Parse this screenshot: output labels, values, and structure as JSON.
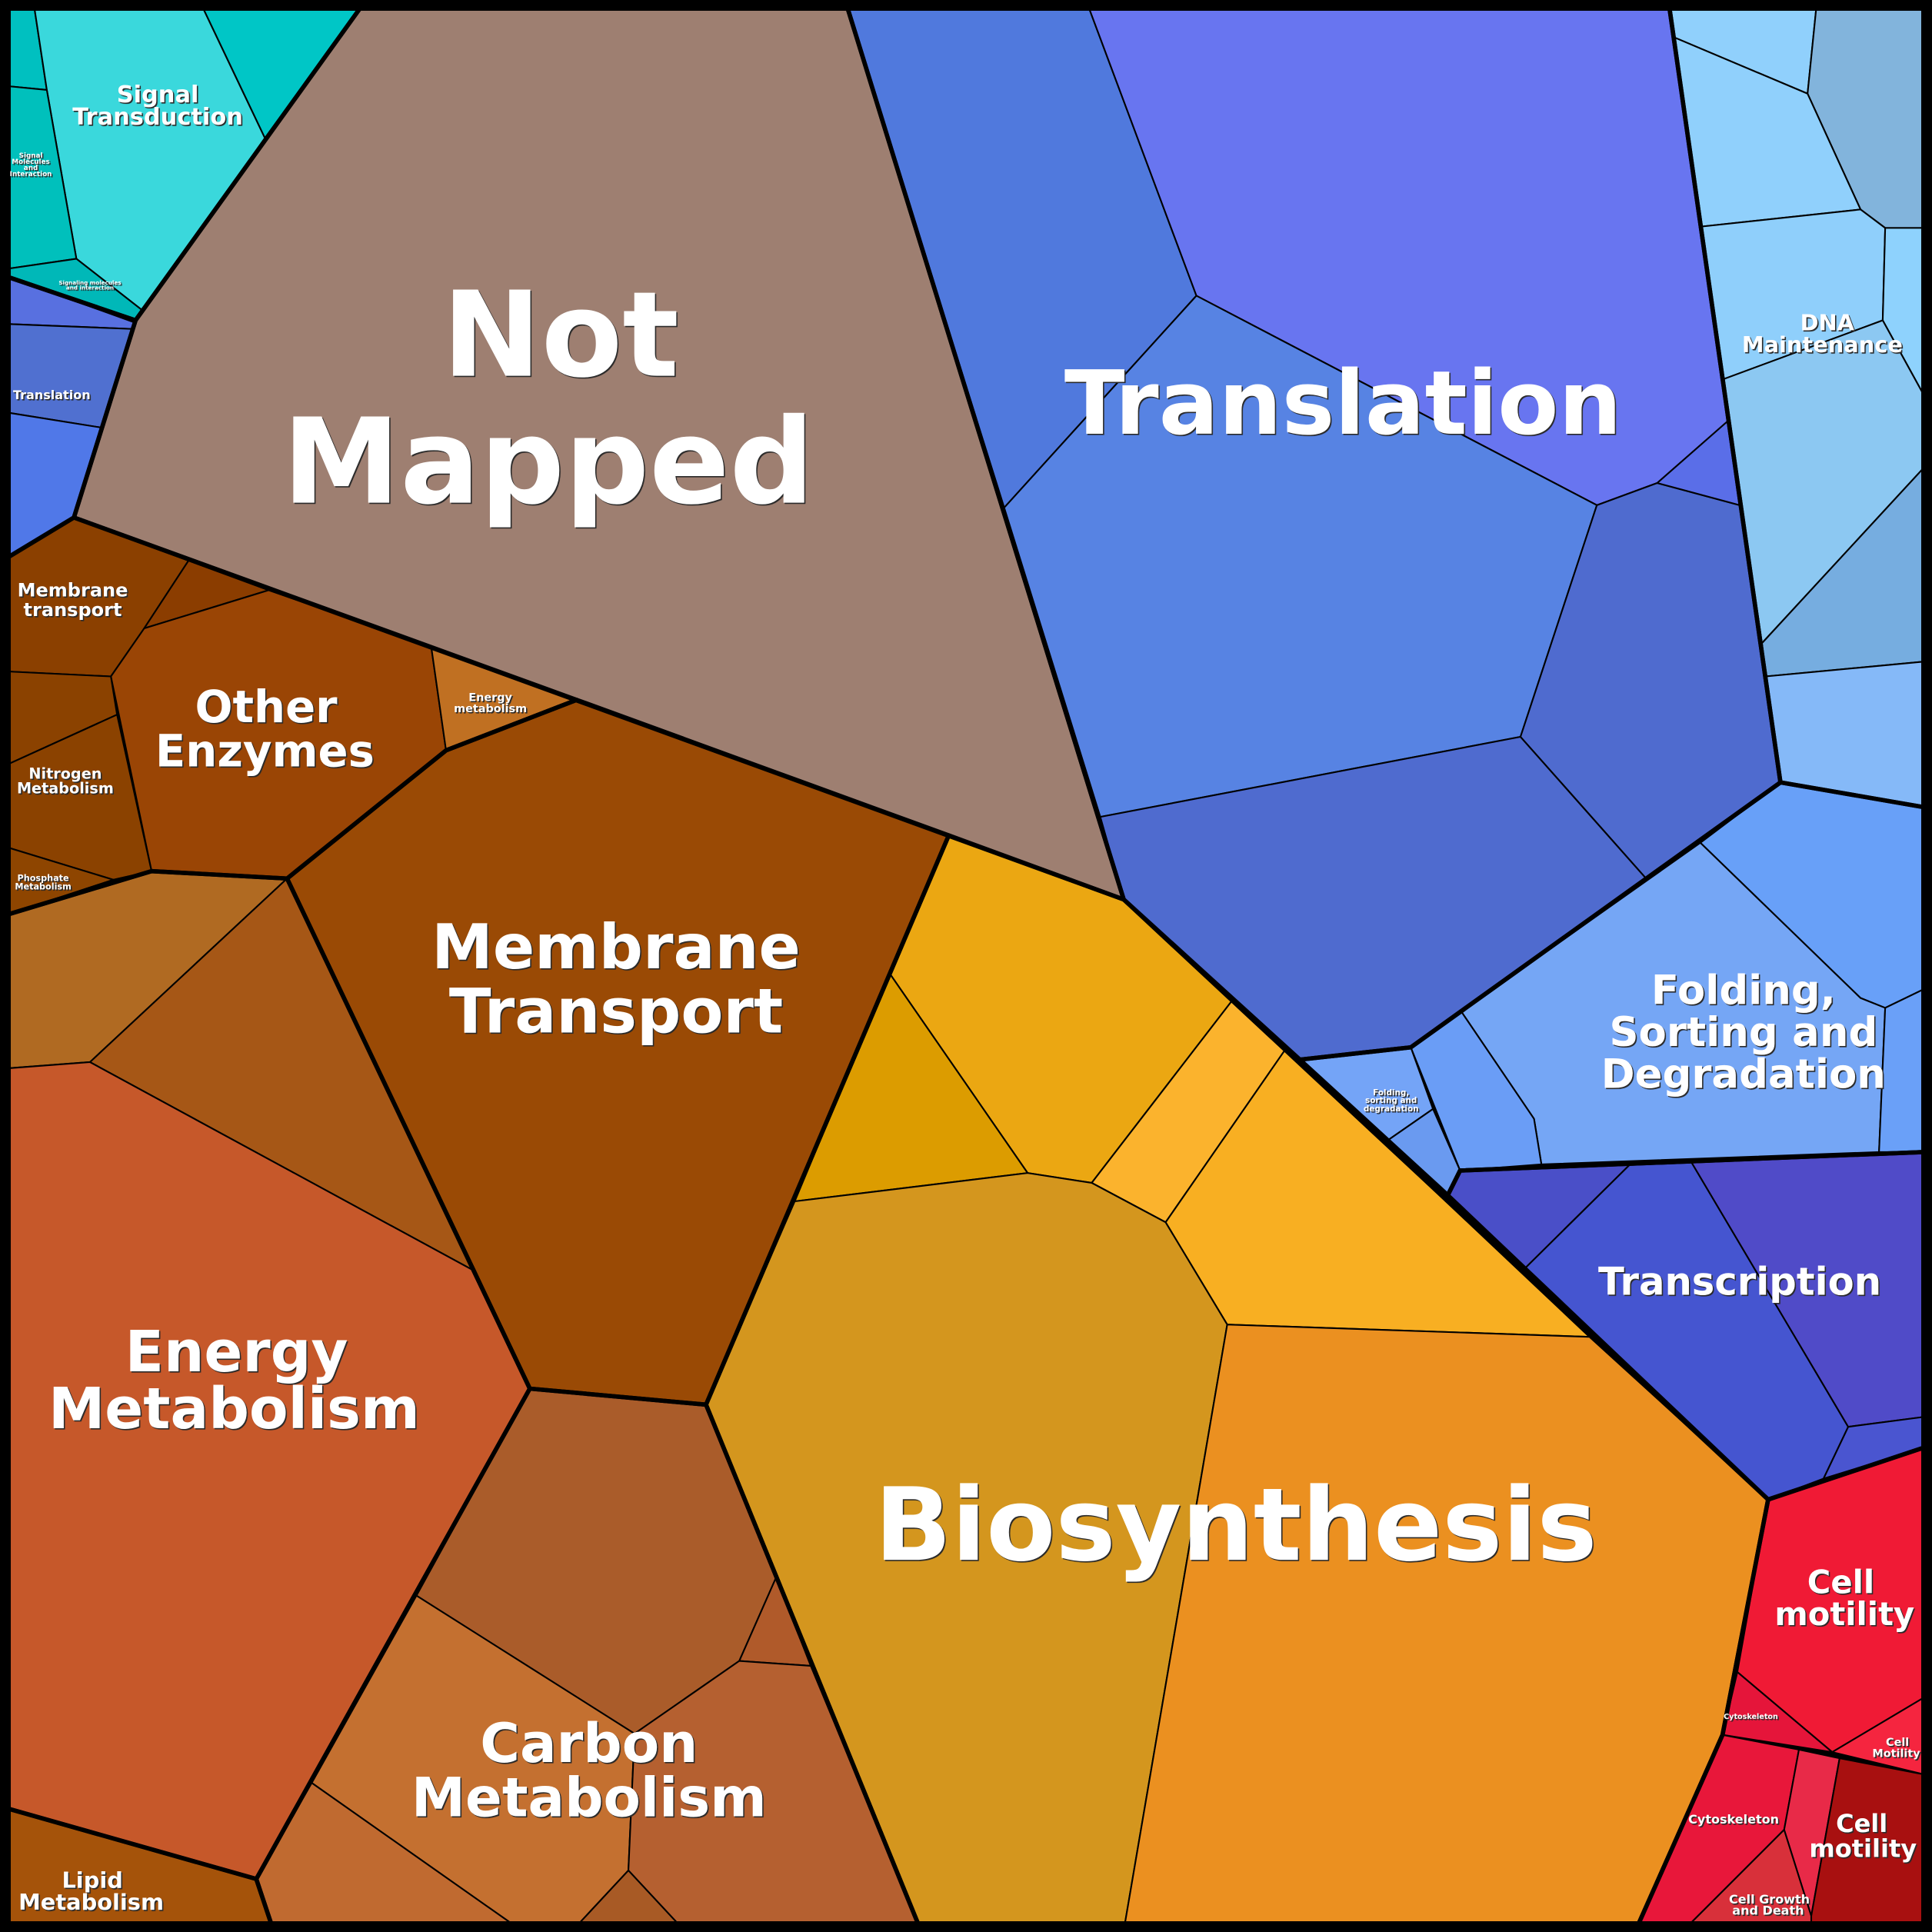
{
  "labels": {
    "not_mapped": [
      "Not",
      "Mapped"
    ],
    "translation": [
      "Translation"
    ],
    "biosynthesis": [
      "Biosynthesis"
    ],
    "membrane_transport": [
      "Membrane",
      "Transport"
    ],
    "energy_metabolism": [
      "Energy",
      "Metabolism"
    ],
    "carbon_metabolism": [
      "Carbon",
      "Metabolism"
    ],
    "other_enzymes": [
      "Other",
      "Enzymes"
    ],
    "folding": [
      "Folding,",
      "Sorting and",
      "Degradation"
    ],
    "transcription": [
      "Transcription"
    ],
    "dna_maintenance": [
      "DNA",
      "Maintenance"
    ],
    "signal_transduction": [
      "Signal",
      "Transduction"
    ],
    "cell_motility": [
      "Cell",
      "motility"
    ],
    "cell_motility_sub": [
      "Cell",
      "motility"
    ],
    "membrane_transport_sub": [
      "Membrane",
      "transport"
    ],
    "nitrogen_metabolism": [
      "Nitrogen",
      "Metabolism"
    ],
    "lipid_metabolism": [
      "Lipid",
      "Metabolism"
    ],
    "translation_sub": [
      "Translation"
    ],
    "phosphate_metabolism": [
      "Phosphate",
      "Metabolism"
    ],
    "energy_metabolism_sub": [
      "Energy",
      "metabolism"
    ],
    "signal_molecules": [
      "Signal",
      "Molecules",
      "and",
      "Interaction"
    ],
    "signaling_molecules": [
      "Signaling molecules",
      "and interaction"
    ],
    "folding_sub": [
      "Folding,",
      "sorting and",
      "degradation"
    ],
    "cytoskeleton_small": [
      "Cytoskeleton"
    ],
    "cytoskeleton": [
      "Cytoskeleton"
    ],
    "cell_motility_small": [
      "Cell",
      "Motility"
    ],
    "cell_growth_death": [
      "Cell Growth",
      "and Death"
    ]
  },
  "colors": {
    "not_mapped": "#9e7f71",
    "translation": "#5783e3",
    "biosynthesis": "#eb9020",
    "membrane_transport": "#9a4a05",
    "energy_metabolism": "#c6582a",
    "transcription": "#4555d0",
    "folding": "#75a6f5",
    "dna_maintenance": "#8fcffb",
    "signal_transduction": "#3ad8dc",
    "cell_motility": "#f01a35"
  }
}
